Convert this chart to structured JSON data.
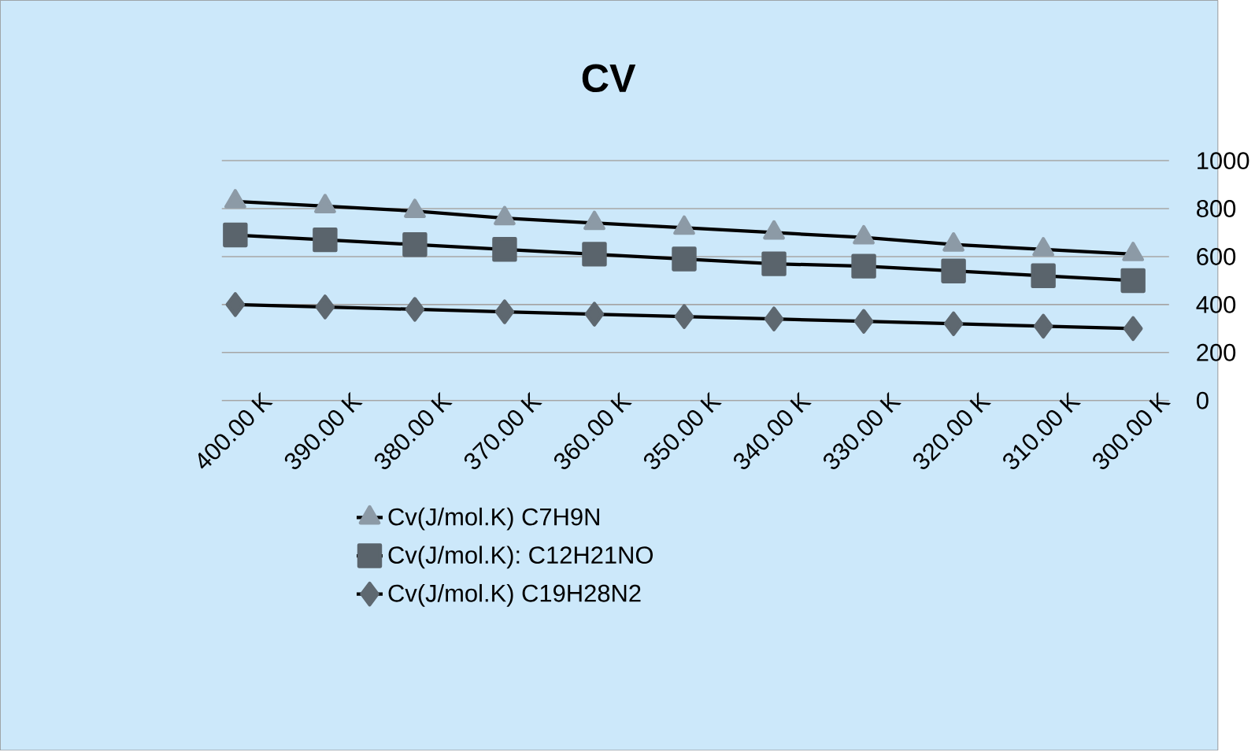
{
  "chart_data": {
    "type": "line",
    "title": "CV",
    "categories": [
      "400.00 K",
      "390.00 K",
      "380.00 K",
      "370.00 K",
      "360.00 K",
      "350.00 K",
      "340.00 K",
      "330.00 K",
      "320.00 K",
      "310.00 K",
      "300.00 K"
    ],
    "series": [
      {
        "name": "Cv(J/mol.K) C7H9N",
        "color": "#8c9aa6",
        "marker": "triangle",
        "values": [
          830,
          810,
          790,
          760,
          740,
          720,
          700,
          680,
          650,
          630,
          610
        ]
      },
      {
        "name": "Cv(J/mol.K): C12H21NO",
        "color": "#5a646c",
        "marker": "square",
        "values": [
          690,
          670,
          650,
          630,
          610,
          590,
          570,
          560,
          540,
          520,
          500
        ]
      },
      {
        "name": "Cv(J/mol.K)  C19H28N2",
        "color": "#5e6870",
        "marker": "diamond",
        "values": [
          400,
          390,
          380,
          370,
          360,
          350,
          340,
          330,
          320,
          310,
          300
        ]
      }
    ],
    "ylim": [
      0,
      1000
    ],
    "yticks": [
      0,
      200,
      400,
      600,
      800,
      1000
    ],
    "grid": "y",
    "legend": "bottom",
    "line_style": "solid"
  }
}
